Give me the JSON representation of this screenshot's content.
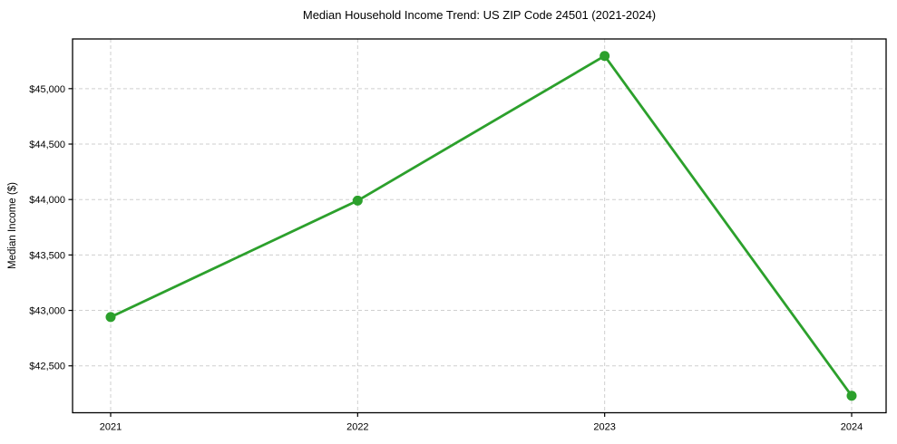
{
  "chart_data": {
    "type": "line",
    "title": "Median Household Income Trend: US ZIP Code 24501 (2021-2024)",
    "xlabel": "",
    "ylabel": "Median Income ($)",
    "categories": [
      "2021",
      "2022",
      "2023",
      "2024"
    ],
    "series": [
      {
        "name": "Median Household Income",
        "values": [
          42940,
          43990,
          45295,
          42230
        ]
      }
    ],
    "ylim": [
      42077,
      45448
    ],
    "yticks": [
      42500,
      43000,
      43500,
      44000,
      44500,
      45000
    ],
    "ytick_labels": [
      "$42,500",
      "$43,000",
      "$43,500",
      "$44,000",
      "$44,500",
      "$45,000"
    ],
    "grid": true,
    "grid_style": "dashed",
    "legend": "none",
    "colors": {
      "line": "#2ca02c",
      "marker": "#2ca02c",
      "grid": "#cfcfcf",
      "spine": "#000000",
      "text": "#000000",
      "background": "#ffffff"
    }
  }
}
